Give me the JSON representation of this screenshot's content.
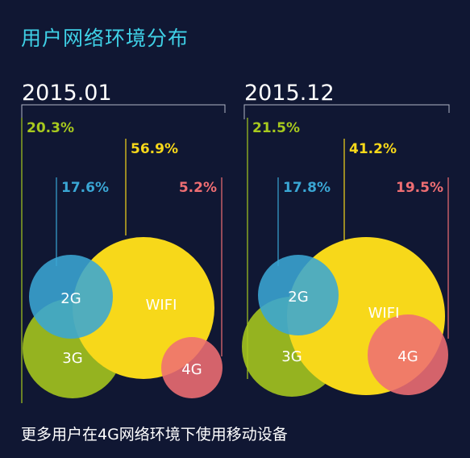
{
  "title": "用户网络环境分布",
  "footer": "更多用户在4G网络环境下使用移动设备",
  "colors": {
    "background": "#101733",
    "title": "#3fd0e6",
    "axis": "#b0b4c4",
    "3G": "#9dc41c",
    "2G": "#2ba3d6",
    "WIFI": "#f7d81a",
    "4G": "#ec6a6e"
  },
  "chart_data": [
    {
      "type": "bubble",
      "period": "2015.01",
      "series": [
        {
          "name": "3G",
          "value": 20.3,
          "label": "20.3%",
          "bubble_label": "3G",
          "color": "#a7c91e"
        },
        {
          "name": "2G",
          "value": 17.6,
          "label": "17.6%",
          "bubble_label": "2G",
          "color": "#3aa6d4"
        },
        {
          "name": "WIFI",
          "value": 56.9,
          "label": "56.9%",
          "bubble_label": "WIFI",
          "color": "#f7d81a"
        },
        {
          "name": "4G",
          "value": 5.2,
          "label": "5.2%",
          "bubble_label": "4G",
          "color": "#ef6e73"
        }
      ]
    },
    {
      "type": "bubble",
      "period": "2015.12",
      "series": [
        {
          "name": "3G",
          "value": 21.5,
          "label": "21.5%",
          "bubble_label": "3G",
          "color": "#a7c91e"
        },
        {
          "name": "2G",
          "value": 17.8,
          "label": "17.8%",
          "bubble_label": "2G",
          "color": "#3aa6d4"
        },
        {
          "name": "WIFI",
          "value": 41.2,
          "label": "41.2%",
          "bubble_label": "WIFI",
          "color": "#f7d81a"
        },
        {
          "name": "4G",
          "value": 19.5,
          "label": "19.5%",
          "bubble_label": "4G",
          "color": "#ef6e73"
        }
      ]
    }
  ]
}
